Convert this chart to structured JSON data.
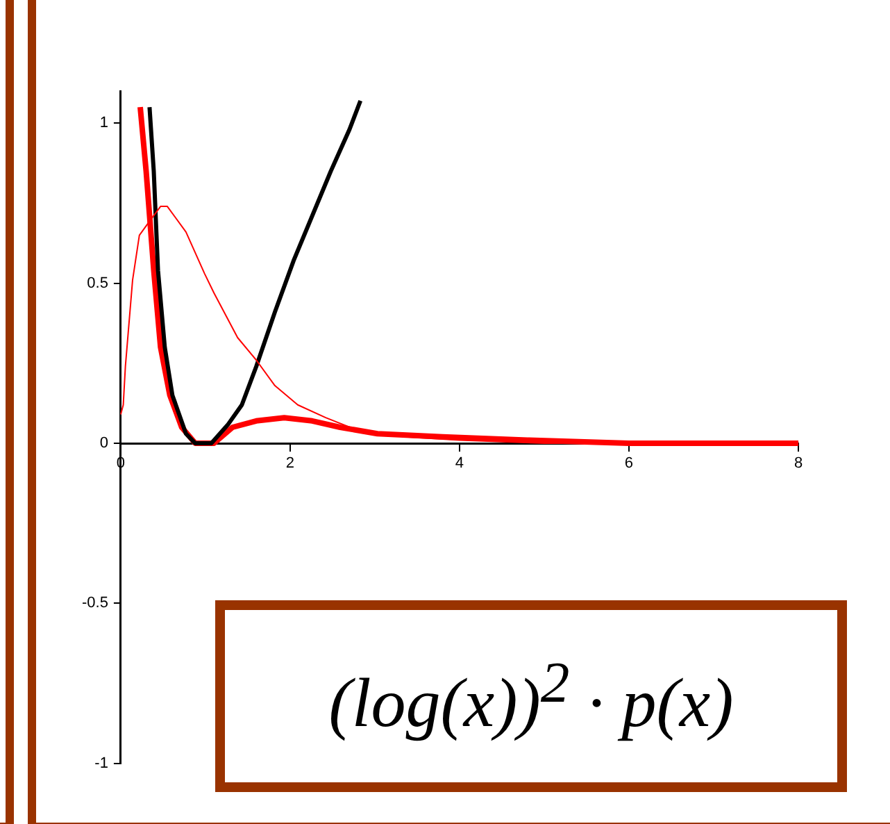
{
  "chart_data": {
    "type": "line",
    "xlim": [
      0,
      8
    ],
    "xticks": [
      0,
      2,
      4,
      6,
      8
    ],
    "ylim": [
      -1,
      1.1
    ],
    "yticks": [
      -1,
      -0.5,
      0,
      0.5,
      1
    ],
    "grid": false,
    "legend": false,
    "marker": "none",
    "line_style": "solid",
    "series": [
      {
        "color": "#ff0000",
        "x": [
          0,
          0.03,
          0.055,
          0.14,
          0.22,
          0.33,
          0.47,
          0.55,
          0.77,
          0.99,
          1.1,
          1.38,
          1.6,
          1.82,
          2.09,
          2.42,
          2.8,
          3.36,
          4,
          5,
          6,
          7,
          8
        ],
        "values": [
          0.09,
          0.12,
          0.24,
          0.51,
          0.65,
          0.69,
          0.74,
          0.74,
          0.66,
          0.53,
          0.47,
          0.33,
          0.26,
          0.18,
          0.12,
          0.08,
          0.04,
          0.02,
          0.01,
          0,
          0,
          0,
          0
        ]
      },
      {
        "color": "#000000",
        "x": [
          0.34,
          0.39,
          0.44,
          0.52,
          0.61,
          0.77,
          0.88,
          1.07,
          1.27,
          1.43,
          1.6,
          1.82,
          2.04,
          2.26,
          2.48,
          2.7,
          2.83
        ],
        "values": [
          1.05,
          0.85,
          0.54,
          0.3,
          0.15,
          0.03,
          0,
          0,
          0.06,
          0.12,
          0.24,
          0.41,
          0.57,
          0.71,
          0.85,
          0.98,
          1.07
        ]
      },
      {
        "color": "#ff0000",
        "x": [
          0.23,
          0.3,
          0.39,
          0.47,
          0.58,
          0.72,
          0.88,
          1.1,
          1.32,
          1.6,
          1.93,
          2.26,
          2.59,
          3.03,
          3.8,
          4.8,
          6,
          8
        ],
        "values": [
          1.05,
          0.85,
          0.54,
          0.3,
          0.15,
          0.05,
          0,
          0,
          0.05,
          0.07,
          0.08,
          0.07,
          0.05,
          0.03,
          0.02,
          0.01,
          0,
          0
        ]
      }
    ],
    "annotations": [
      "(log(x))$^{2}$ · p(x)"
    ]
  }
}
